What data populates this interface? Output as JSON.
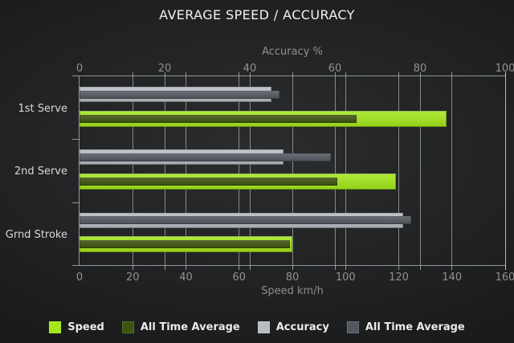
{
  "title": "AVERAGE SPEED / ACCURACY",
  "chart_data": {
    "type": "bar",
    "orientation": "horizontal",
    "title": "AVERAGE SPEED / ACCURACY",
    "categories": [
      "1st Serve",
      "2nd Serve",
      "Grnd Stroke"
    ],
    "axes": {
      "top": {
        "label": "Accuracy %",
        "min": 0,
        "max": 100,
        "ticks": [
          0,
          20,
          40,
          60,
          80,
          100
        ]
      },
      "bottom": {
        "label": "Speed km/h",
        "min": 0,
        "max": 160,
        "ticks": [
          0,
          20,
          40,
          60,
          80,
          100,
          120,
          140,
          160
        ]
      }
    },
    "series": [
      {
        "name": "Speed",
        "axis": "bottom",
        "role": "current",
        "color": "#a4e71a",
        "values": [
          138,
          119,
          80
        ]
      },
      {
        "name": "All Time Average",
        "axis": "bottom",
        "role": "average",
        "color": "#3c540d",
        "values": [
          104,
          97,
          79
        ]
      },
      {
        "name": "Accuracy",
        "axis": "top",
        "role": "current",
        "color": "#b7bdc3",
        "values": [
          45,
          48,
          76
        ]
      },
      {
        "name": "All Time Average",
        "axis": "top",
        "role": "average",
        "color": "#51585f",
        "values": [
          47,
          59,
          78
        ]
      }
    ],
    "grid": true,
    "legend_position": "bottom"
  },
  "legend": {
    "items": [
      {
        "label": "Speed",
        "color": "#a4e71a"
      },
      {
        "label": "All Time Average",
        "color": "#3c540d"
      },
      {
        "label": "Accuracy",
        "color": "#b7bdc3"
      },
      {
        "label": "All Time Average",
        "color": "#51585f"
      }
    ]
  },
  "colors": {
    "speed": "#a4e71a",
    "speed_all_time_average": "#3c540d",
    "accuracy": "#b7bdc3",
    "accuracy_all_time_average": "#51585f",
    "background_center": "#2b2c2d",
    "background_edge": "#141516"
  }
}
